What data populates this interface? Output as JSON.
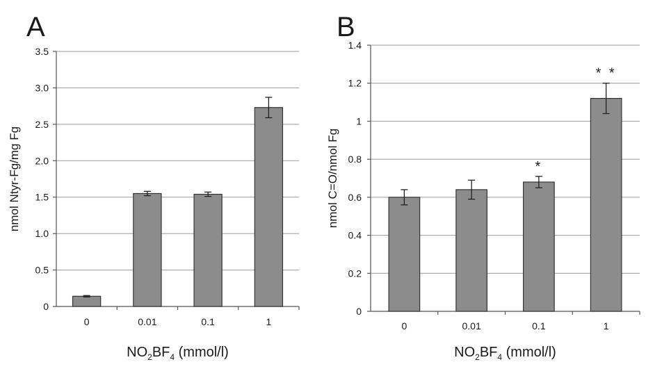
{
  "chart_data": [
    {
      "type": "bar",
      "panel_label": "A",
      "categories": [
        "0",
        "0.01",
        "0.1",
        "1"
      ],
      "values": [
        0.14,
        1.55,
        1.54,
        2.73
      ],
      "errors": [
        0.01,
        0.03,
        0.03,
        0.14
      ],
      "significance": [
        "",
        "",
        "",
        ""
      ],
      "ylabel": "nmol Ntyr-Fg/mg Fg",
      "xlabel": {
        "pre": "NO",
        "sub1": "2",
        "mid": "BF",
        "sub2": "4",
        "post": " (mmol/l)"
      },
      "ylim": [
        0,
        3.5
      ],
      "yticks": [
        "0",
        "0.5",
        "1.0",
        "1.5",
        "2.0",
        "2.5",
        "3.0",
        "3.5"
      ],
      "grid": true
    },
    {
      "type": "bar",
      "panel_label": "B",
      "categories": [
        "0",
        "0.01",
        "0.1",
        "1"
      ],
      "values": [
        0.6,
        0.64,
        0.68,
        1.12
      ],
      "errors": [
        0.04,
        0.05,
        0.03,
        0.08
      ],
      "significance": [
        "",
        "",
        "*",
        "**"
      ],
      "ylabel": "nmol C=O/nmol Fg",
      "xlabel": {
        "pre": "NO",
        "sub1": "2",
        "mid": "BF",
        "sub2": "4",
        "post": " (mmol/l)"
      },
      "ylim": [
        0,
        1.4
      ],
      "yticks": [
        "0",
        "0.2",
        "0.4",
        "0.6",
        "0.8",
        "1",
        "1.2",
        "1.4"
      ],
      "grid": true
    }
  ]
}
